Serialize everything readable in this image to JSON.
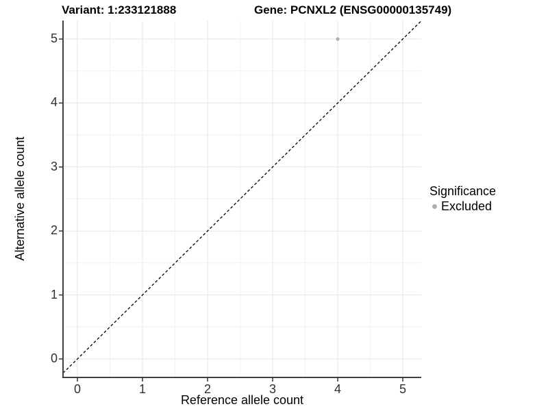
{
  "chart_data": {
    "type": "scatter",
    "title_left": "Variant: 1:233121888",
    "title_right": "Gene: PCNXL2 (ENSG00000135749)",
    "xlabel": "Reference allele count",
    "ylabel": "Alternative allele count",
    "xlim": [
      -0.25,
      5.25
    ],
    "ylim": [
      -0.25,
      5.25
    ],
    "x_ticks": [
      0,
      1,
      2,
      3,
      4,
      5
    ],
    "y_ticks": [
      0,
      1,
      2,
      3,
      4,
      5
    ],
    "minor_ticks": [
      0.5,
      1.5,
      2.5,
      3.5,
      4.5
    ],
    "grid": "major+minor",
    "points": [
      {
        "x": 4,
        "y": 5,
        "series": "Excluded"
      }
    ],
    "identity_line": {
      "slope": 1,
      "intercept": 0,
      "style": "dashed",
      "color": "#000000"
    },
    "legend": {
      "title": "Significance",
      "position": "right",
      "items": [
        {
          "label": "Excluded",
          "color": "#b0b0b0",
          "marker": "circle"
        }
      ]
    },
    "colors": {
      "point_excluded": "#b0b0b0",
      "grid_major": "#e5e5e5",
      "grid_minor": "#f2f2f2",
      "axis_line": "#404040",
      "tick_mark": "#333333",
      "background": "#ffffff",
      "text": "#000000"
    }
  }
}
